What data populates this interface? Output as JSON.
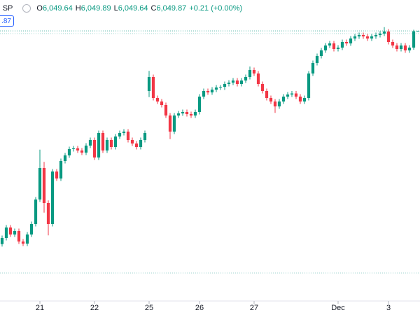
{
  "header": {
    "symbol": "· SP",
    "open_letter": "O",
    "open": "6,049.64",
    "high_letter": "H",
    "high": "6,049.89",
    "low_letter": "L",
    "low": "6,049.64",
    "close_letter": "C",
    "close": "6,049.87",
    "change": "+0.21 (+0.00%)",
    "price_tag": ".87"
  },
  "chart_data": {
    "type": "candlestick",
    "up_color": "#089981",
    "down_color": "#f23645",
    "xlim": [
      -0.5,
      99.5
    ],
    "ylim": [
      5895.5,
      6067.5
    ],
    "xticks": [
      {
        "value": 9,
        "label": "21"
      },
      {
        "value": 22,
        "label": "22"
      },
      {
        "value": 35,
        "label": "25"
      },
      {
        "value": 47,
        "label": "26"
      },
      {
        "value": 60,
        "label": "27"
      },
      {
        "value": 80,
        "label": "Dec"
      },
      {
        "value": 92,
        "label": "3"
      }
    ],
    "ohlc": [
      [
        5928.0,
        5932.9,
        5926.6,
        5931.5
      ],
      [
        5931.5,
        5938.9,
        5930.1,
        5937.5
      ],
      [
        5937.5,
        5938.9,
        5932.1,
        5933.5
      ],
      [
        5933.5,
        5936.9,
        5932.1,
        5935.5
      ],
      [
        5935.5,
        5936.9,
        5928.1,
        5929.5
      ],
      [
        5929.5,
        5930.9,
        5926.9,
        5928.3
      ],
      [
        5928.3,
        5934.9,
        5926.9,
        5933.5
      ],
      [
        5933.5,
        5940.9,
        5932.1,
        5939.5
      ],
      [
        5939.5,
        5954.9,
        5938.1,
        5953.5
      ],
      [
        5953.5,
        5982.0,
        5952.1,
        5971.5
      ],
      [
        5971.5,
        5975.0,
        5946.0,
        5951.5
      ],
      [
        5951.5,
        5953.0,
        5933.0,
        5939.5
      ],
      [
        5939.5,
        5970.9,
        5938.1,
        5969.5
      ],
      [
        5969.5,
        5970.9,
        5964.1,
        5965.5
      ],
      [
        5965.5,
        5976.9,
        5964.1,
        5975.5
      ],
      [
        5975.5,
        5980.1,
        5974.1,
        5978.7
      ],
      [
        5978.7,
        5983.7,
        5977.3,
        5982.3
      ],
      [
        5982.3,
        5984.1,
        5980.9,
        5982.7
      ],
      [
        5982.7,
        5984.1,
        5980.1,
        5981.5
      ],
      [
        5981.5,
        5982.9,
        5978.9,
        5980.3
      ],
      [
        5980.3,
        5985.7,
        5978.9,
        5984.3
      ],
      [
        5984.3,
        5988.9,
        5982.9,
        5987.5
      ],
      [
        5987.5,
        5988.9,
        5976.1,
        5977.5
      ],
      [
        5977.5,
        5992.9,
        5976.1,
        5991.5
      ],
      [
        5991.5,
        5992.9,
        5980.1,
        5981.5
      ],
      [
        5981.5,
        5988.9,
        5980.1,
        5987.5
      ],
      [
        5987.5,
        5988.9,
        5982.1,
        5983.5
      ],
      [
        5983.5,
        5990.9,
        5982.1,
        5989.5
      ],
      [
        5989.5,
        5992.9,
        5988.1,
        5991.5
      ],
      [
        5991.5,
        5993.7,
        5990.1,
        5992.3
      ],
      [
        5992.3,
        5993.7,
        5986.1,
        5987.5
      ],
      [
        5987.5,
        5988.9,
        5984.1,
        5985.5
      ],
      [
        5985.5,
        5986.9,
        5982.1,
        5983.5
      ],
      [
        5983.5,
        5988.9,
        5982.1,
        5987.5
      ],
      [
        5987.5,
        5992.9,
        5986.1,
        5991.5
      ],
      [
        6015.5,
        6027.0,
        6012.0,
        6023.5
      ],
      [
        6023.5,
        6024.9,
        6010.1,
        6011.5
      ],
      [
        6011.5,
        6012.9,
        6008.1,
        6009.5
      ],
      [
        6009.5,
        6010.9,
        6006.1,
        6007.5
      ],
      [
        6007.5,
        6008.9,
        6000.1,
        6001.5
      ],
      [
        6001.5,
        6002.9,
        5988.0,
        5992.3
      ],
      [
        5992.3,
        6002.9,
        5990.9,
        6001.5
      ],
      [
        6001.5,
        6004.1,
        6000.1,
        6002.7
      ],
      [
        6002.7,
        6004.9,
        6001.3,
        6003.5
      ],
      [
        6003.5,
        6004.9,
        6000.9,
        6002.3
      ],
      [
        6002.3,
        6003.7,
        6000.1,
        6001.5
      ],
      [
        6001.5,
        6004.9,
        6000.1,
        6003.5
      ],
      [
        6003.5,
        6013.7,
        6002.1,
        6012.3
      ],
      [
        6012.3,
        6016.9,
        6010.9,
        6015.5
      ],
      [
        6015.5,
        6016.9,
        6013.3,
        6014.7
      ],
      [
        6014.7,
        6017.7,
        6013.3,
        6016.3
      ],
      [
        6016.3,
        6018.9,
        6014.9,
        6017.5
      ],
      [
        6017.5,
        6018.9,
        6016.1,
        6017.9
      ],
      [
        6017.9,
        6020.9,
        6016.1,
        6019.5
      ],
      [
        6019.5,
        6021.7,
        6018.1,
        6020.3
      ],
      [
        6020.3,
        6022.9,
        6018.9,
        6021.5
      ],
      [
        6021.5,
        6022.9,
        6018.1,
        6019.5
      ],
      [
        6019.5,
        6022.9,
        6018.1,
        6021.5
      ],
      [
        6021.5,
        6024.9,
        6020.1,
        6023.5
      ],
      [
        6023.5,
        6029.5,
        6022.1,
        6027.5
      ],
      [
        6027.5,
        6028.9,
        6024.1,
        6025.5
      ],
      [
        6025.5,
        6026.9,
        6018.1,
        6019.5
      ],
      [
        6019.5,
        6020.9,
        6014.1,
        6015.5
      ],
      [
        6015.5,
        6016.9,
        6010.1,
        6011.5
      ],
      [
        6011.5,
        6012.9,
        6008.1,
        6009.5
      ],
      [
        6009.5,
        6010.9,
        6003.0,
        6006.7
      ],
      [
        6006.7,
        6010.9,
        6005.3,
        6009.5
      ],
      [
        6009.5,
        6013.7,
        6008.1,
        6012.3
      ],
      [
        6012.3,
        6014.9,
        6010.9,
        6013.5
      ],
      [
        6013.5,
        6015.5,
        6012.1,
        6014.1
      ],
      [
        6014.1,
        6015.5,
        6010.9,
        6012.3
      ],
      [
        6012.3,
        6013.7,
        6008.1,
        6009.5
      ],
      [
        6009.5,
        6012.9,
        6008.1,
        6011.5
      ],
      [
        6011.5,
        6026.9,
        6010.1,
        6025.5
      ],
      [
        6025.5,
        6032.9,
        6024.1,
        6031.5
      ],
      [
        6031.5,
        6036.9,
        6030.1,
        6035.5
      ],
      [
        6035.5,
        6040.1,
        6034.1,
        6038.7
      ],
      [
        6038.7,
        6042.9,
        6037.3,
        6041.5
      ],
      [
        6041.5,
        6044.1,
        6040.1,
        6042.7
      ],
      [
        6042.7,
        6044.1,
        6038.1,
        6039.5
      ],
      [
        6039.5,
        6041.7,
        6038.1,
        6040.3
      ],
      [
        6040.3,
        6044.9,
        6038.9,
        6043.5
      ],
      [
        6043.5,
        6044.9,
        6041.3,
        6042.7
      ],
      [
        6042.7,
        6046.9,
        6041.3,
        6045.5
      ],
      [
        6045.5,
        6048.1,
        6044.1,
        6046.7
      ],
      [
        6046.7,
        6048.9,
        6045.3,
        6047.5
      ],
      [
        6047.5,
        6048.9,
        6045.3,
        6046.7
      ],
      [
        6046.7,
        6048.1,
        6044.1,
        6045.5
      ],
      [
        6045.5,
        6048.1,
        6044.1,
        6046.7
      ],
      [
        6046.7,
        6048.9,
        6045.3,
        6047.5
      ],
      [
        6047.5,
        6049.7,
        6046.1,
        6048.3
      ],
      [
        6048.3,
        6052.0,
        6046.9,
        6049.5
      ],
      [
        6049.5,
        6050.9,
        6042.1,
        6043.5
      ],
      [
        6043.5,
        6044.9,
        6040.1,
        6041.5
      ],
      [
        6041.5,
        6042.9,
        6038.1,
        6039.5
      ],
      [
        6039.5,
        6042.9,
        6038.1,
        6041.5
      ],
      [
        6041.5,
        6042.9,
        6037.3,
        6038.7
      ],
      [
        6038.7,
        6041.7,
        6037.3,
        6040.3
      ],
      [
        6040.3,
        6050.5,
        6039.1,
        6049.64
      ],
      [
        6049.64,
        6049.89,
        6049.64,
        6049.87
      ]
    ]
  }
}
